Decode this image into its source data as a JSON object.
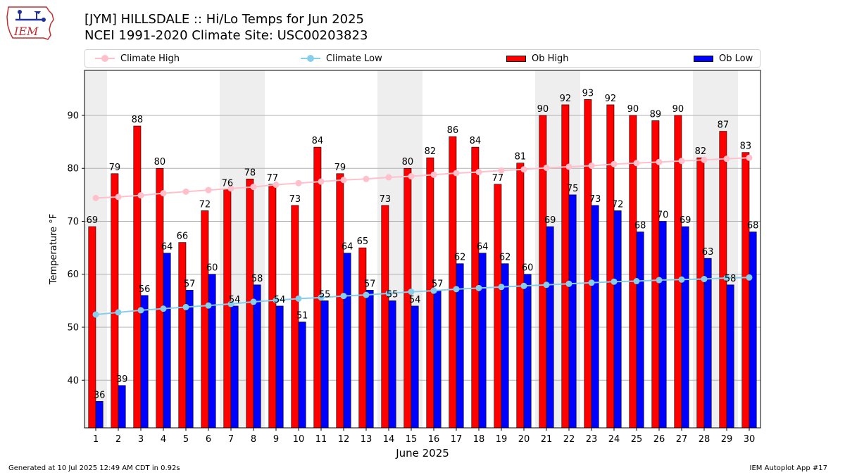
{
  "header": {
    "logo_text": "IEM",
    "title_line1": "[JYM] HILLSDALE :: Hi/Lo Temps for Jun 2025",
    "title_line2": "NCEI 1991-2020 Climate Site: USC00203823"
  },
  "legend": {
    "climate_high": "Climate High",
    "climate_low": "Climate Low",
    "ob_high": "Ob High",
    "ob_low": "Ob Low"
  },
  "footer": {
    "generated": "Generated at 10 Jul 2025 12:49 AM CDT in 0.92s",
    "app": "IEM Autoplot App #17"
  },
  "colors": {
    "ob_high": "#ff0000",
    "ob_low": "#0000ff",
    "climate_high": "#ffc0cb",
    "climate_low": "#87ceeb",
    "weekend_band": "#eeeeee",
    "grid": "#b0b0b0"
  },
  "chart_data": {
    "type": "bar",
    "title": "[JYM] HILLSDALE :: Hi/Lo Temps for Jun 2025",
    "subtitle": "NCEI 1991-2020 Climate Site: USC00203823",
    "xlabel": "June 2025",
    "ylabel": "Temperature °F",
    "ylim": [
      31,
      98.5
    ],
    "yticks": [
      40,
      50,
      60,
      70,
      80,
      90
    ],
    "grid": true,
    "legend_position": "top",
    "categories": [
      "1",
      "2",
      "3",
      "4",
      "5",
      "6",
      "7",
      "8",
      "9",
      "10",
      "11",
      "12",
      "13",
      "14",
      "15",
      "16",
      "17",
      "18",
      "19",
      "20",
      "21",
      "22",
      "23",
      "24",
      "25",
      "26",
      "27",
      "28",
      "29",
      "30"
    ],
    "shaded_days": [
      1,
      7,
      8,
      14,
      15,
      21,
      22,
      28,
      29
    ],
    "series": [
      {
        "name": "Ob High",
        "kind": "bar",
        "values": [
          69,
          79,
          88,
          80,
          66,
          72,
          76,
          78,
          77,
          73,
          84,
          79,
          65,
          73,
          80,
          82,
          86,
          84,
          77,
          81,
          90,
          92,
          93,
          92,
          90,
          89,
          90,
          82,
          87,
          83
        ]
      },
      {
        "name": "Ob Low",
        "kind": "bar",
        "values": [
          36,
          39,
          56,
          64,
          57,
          60,
          54,
          58,
          54,
          51,
          55,
          64,
          57,
          55,
          54,
          57,
          62,
          64,
          62,
          60,
          69,
          75,
          73,
          72,
          68,
          70,
          69,
          63,
          58,
          68
        ]
      },
      {
        "name": "Climate High",
        "kind": "line",
        "values": [
          74.4,
          74.6,
          74.9,
          75.3,
          75.6,
          75.9,
          76.2,
          76.5,
          76.9,
          77.2,
          77.5,
          77.8,
          78.0,
          78.3,
          78.5,
          78.8,
          79.1,
          79.3,
          79.6,
          79.8,
          80.1,
          80.3,
          80.5,
          80.8,
          81.0,
          81.2,
          81.4,
          81.6,
          81.8,
          82.0
        ]
      },
      {
        "name": "Climate Low",
        "kind": "line",
        "values": [
          52.4,
          52.8,
          53.2,
          53.5,
          53.8,
          54.1,
          54.4,
          54.8,
          55.1,
          55.4,
          55.6,
          55.9,
          56.1,
          56.4,
          56.7,
          56.9,
          57.2,
          57.4,
          57.6,
          57.8,
          58.0,
          58.2,
          58.4,
          58.6,
          58.7,
          58.9,
          59.0,
          59.1,
          59.3,
          59.4
        ]
      }
    ]
  }
}
